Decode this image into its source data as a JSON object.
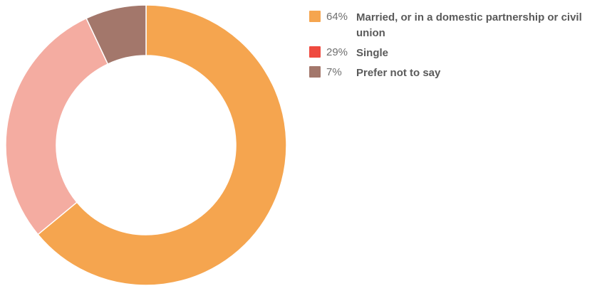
{
  "chart_data": {
    "type": "pie",
    "donut": true,
    "legend_position": "right",
    "slices": [
      {
        "label": "Married, or in a domestic partnership or civil union",
        "value": 64,
        "value_label": "64%",
        "color": "#f5a54f",
        "legend_color": "#f5a54f"
      },
      {
        "label": "Single",
        "value": 29,
        "value_label": "29%",
        "color": "#f4aca1",
        "legend_color": "#ef4a3f"
      },
      {
        "label": "Prefer not to say",
        "value": 7,
        "value_label": "7%",
        "color": "#a3776b",
        "legend_color": "#a3776b"
      }
    ]
  }
}
